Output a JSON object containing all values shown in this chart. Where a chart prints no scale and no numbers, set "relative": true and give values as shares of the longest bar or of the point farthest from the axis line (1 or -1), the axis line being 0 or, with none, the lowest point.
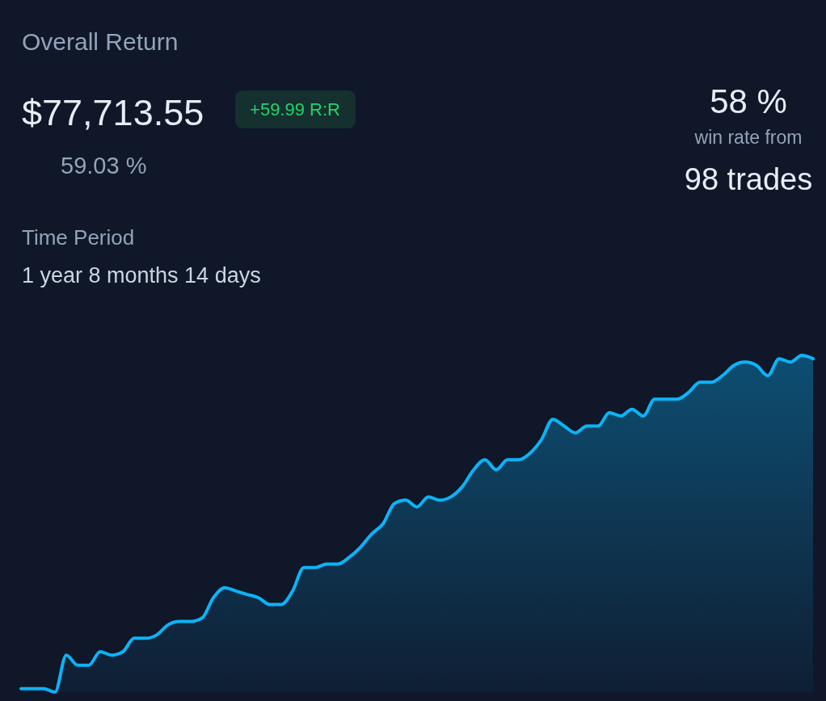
{
  "chart_data": {
    "type": "area",
    "title": "Overall Return",
    "relative": true,
    "categories": [
      null,
      null,
      null,
      null,
      null,
      null,
      null,
      null,
      null,
      null,
      null,
      null,
      null,
      null,
      null,
      null,
      null,
      null,
      null,
      null,
      null,
      null,
      null,
      null,
      null,
      null,
      null,
      null,
      null,
      null,
      null,
      null,
      null,
      null,
      null,
      null,
      null,
      null,
      null,
      null,
      null,
      null,
      null,
      null,
      null,
      null,
      null,
      null,
      null,
      null,
      null,
      null,
      null,
      null,
      null,
      null,
      null,
      null,
      null,
      null,
      null,
      null,
      null,
      null,
      null,
      null,
      null,
      null,
      null,
      null,
      null
    ],
    "series": [
      {
        "color": "#0ab4f8",
        "values": [
          0.01,
          0.01,
          0.01,
          0,
          0.11,
          0.08,
          0.08,
          0.12,
          0.11,
          0.12,
          0.16,
          0.16,
          0.17,
          0.2,
          0.21,
          0.21,
          0.22,
          0.28,
          0.31,
          0.3,
          0.29,
          0.28,
          0.26,
          0.26,
          0.3,
          0.37,
          0.37,
          0.38,
          0.38,
          0.4,
          0.43,
          0.47,
          0.5,
          0.56,
          0.57,
          0.55,
          0.58,
          0.57,
          0.58,
          0.61,
          0.66,
          0.69,
          0.66,
          0.69,
          0.69,
          0.71,
          0.75,
          0.81,
          0.79,
          0.77,
          0.79,
          0.79,
          0.83,
          0.82,
          0.84,
          0.82,
          0.87,
          0.87,
          0.87,
          0.89,
          0.92,
          0.92,
          0.94,
          0.97,
          0.98,
          0.97,
          0.94,
          0.99,
          0.98,
          1.0,
          0.99
        ]
      }
    ],
    "annotations": [
      "$77,713.55",
      "+59.99 R:R",
      "59.03 %",
      "58 %",
      "win rate from",
      "98 trades",
      "Time Period",
      "1 year 8 months 14 days"
    ]
  }
}
